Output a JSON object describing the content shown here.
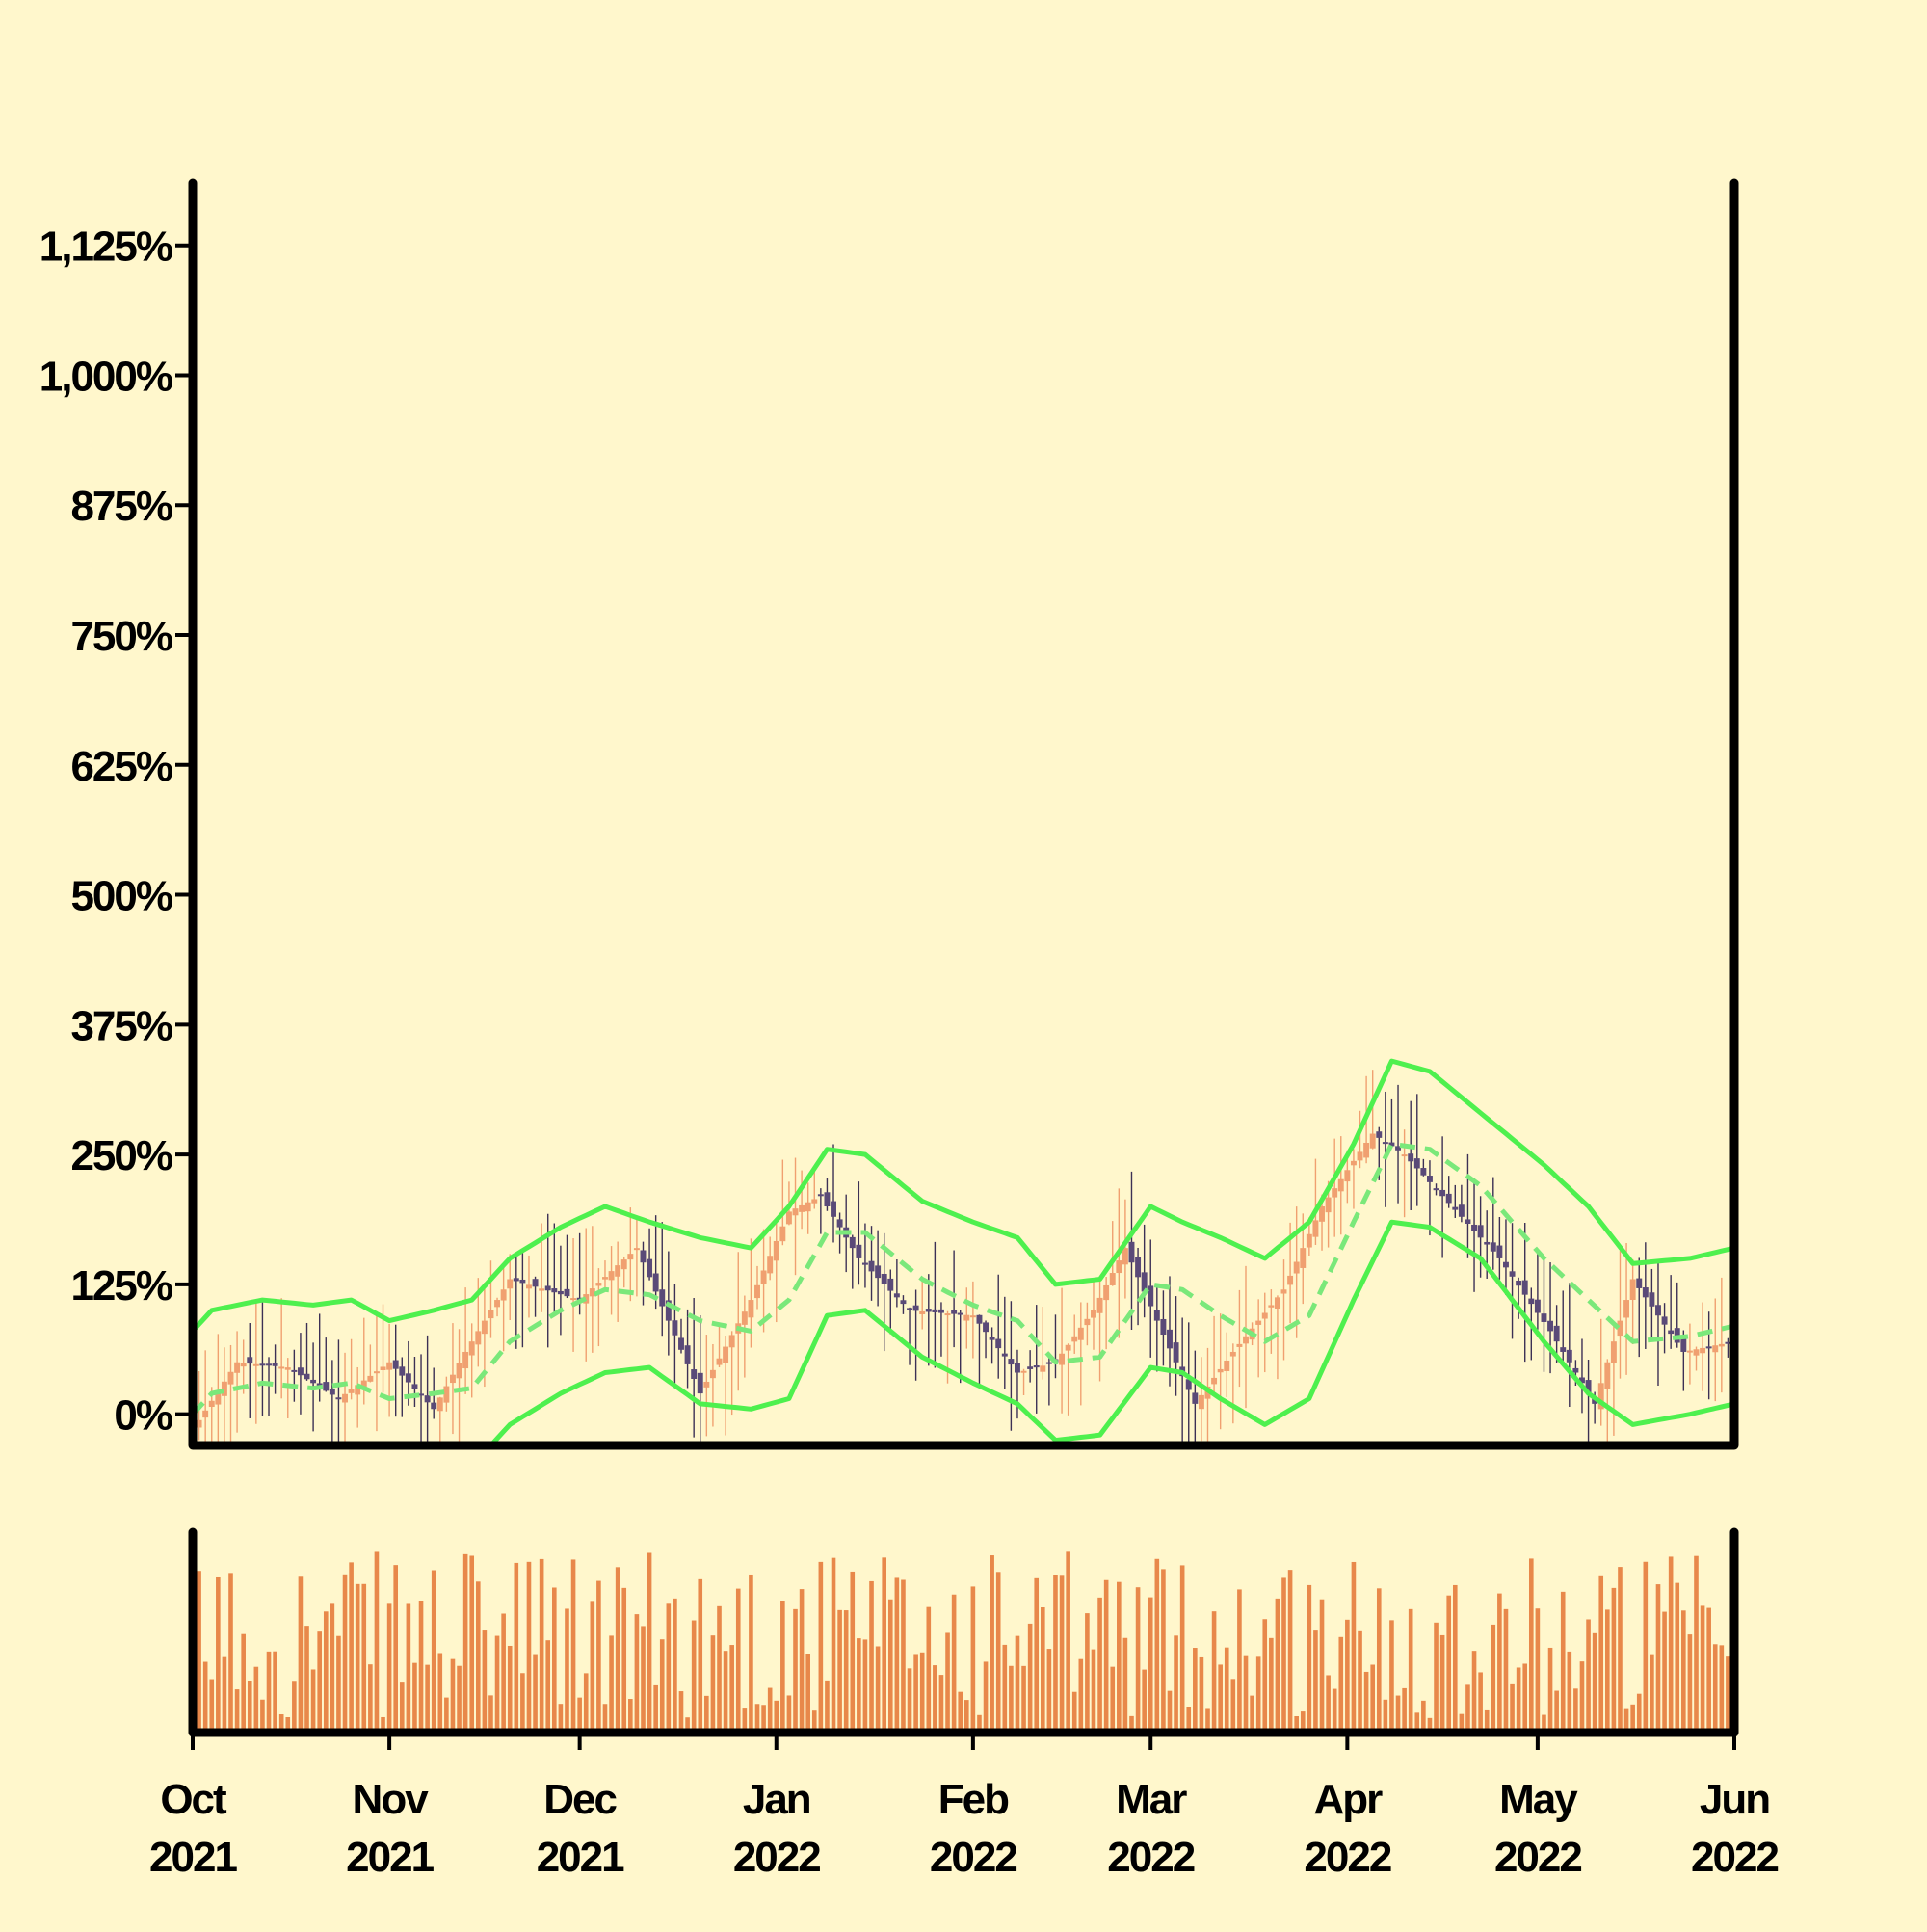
{
  "colors": {
    "background": "#fff7cc",
    "frame": "#000000",
    "candle_up": "#f0a070",
    "candle_up_wick": "#f0a070",
    "candle_down": "#5a4a78",
    "candle_down_wick": "#3c3055",
    "volume": "#e8884a",
    "band": "#4ef04e",
    "band_mid": "#7ae87a"
  },
  "chart_data": {
    "type": "candlestick",
    "title": "",
    "xlabel": "",
    "ylabel": "",
    "ylim": [
      -30,
      1185
    ],
    "yticks": [
      {
        "value": 0,
        "label": "0%"
      },
      {
        "value": 125,
        "label": "125%"
      },
      {
        "value": 250,
        "label": "250%"
      },
      {
        "value": 375,
        "label": "375%"
      },
      {
        "value": 500,
        "label": "500%"
      },
      {
        "value": 625,
        "label": "625%"
      },
      {
        "value": 750,
        "label": "750%"
      },
      {
        "value": 875,
        "label": "875%"
      },
      {
        "value": 1000,
        "label": "1,000%"
      },
      {
        "value": 1125,
        "label": "1,125%"
      }
    ],
    "xrange": [
      "2021-10-01",
      "2022-06-01"
    ],
    "xticks": [
      {
        "date": "2021-10-01",
        "month": "Oct",
        "year": "2021"
      },
      {
        "date": "2021-11-01",
        "month": "Nov",
        "year": "2021"
      },
      {
        "date": "2021-12-01",
        "month": "Dec",
        "year": "2021"
      },
      {
        "date": "2022-01-01",
        "month": "Jan",
        "year": "2022"
      },
      {
        "date": "2022-02-01",
        "month": "Feb",
        "year": "2022"
      },
      {
        "date": "2022-03-01",
        "month": "Mar",
        "year": "2022"
      },
      {
        "date": "2022-04-01",
        "month": "Apr",
        "year": "2022"
      },
      {
        "date": "2022-05-01",
        "month": "May",
        "year": "2022"
      },
      {
        "date": "2022-06-01",
        "month": "Jun",
        "year": "2022"
      }
    ],
    "grid": false,
    "legend": "none",
    "close_path": [
      [
        "2021-10-01",
        -15
      ],
      [
        "2021-10-08",
        50
      ],
      [
        "2021-10-16",
        45
      ],
      [
        "2021-10-24",
        15
      ],
      [
        "2021-11-01",
        50
      ],
      [
        "2021-11-08",
        5
      ],
      [
        "2021-11-13",
        60
      ],
      [
        "2021-11-20",
        130
      ],
      [
        "2021-12-01",
        110
      ],
      [
        "2021-12-10",
        160
      ],
      [
        "2021-12-20",
        20
      ],
      [
        "2021-12-28",
        110
      ],
      [
        "2022-01-03",
        195
      ],
      [
        "2022-01-08",
        210
      ],
      [
        "2022-01-14",
        150
      ],
      [
        "2022-01-22",
        100
      ],
      [
        "2022-02-01",
        95
      ],
      [
        "2022-02-08",
        40
      ],
      [
        "2022-02-14",
        50
      ],
      [
        "2022-02-20",
        100
      ],
      [
        "2022-02-25",
        160
      ],
      [
        "2022-03-02",
        90
      ],
      [
        "2022-03-08",
        10
      ],
      [
        "2022-03-14",
        60
      ],
      [
        "2022-03-22",
        120
      ],
      [
        "2022-03-28",
        200
      ],
      [
        "2022-04-05",
        270
      ],
      [
        "2022-04-10",
        250
      ],
      [
        "2022-04-16",
        210
      ],
      [
        "2022-04-25",
        150
      ],
      [
        "2022-05-03",
        80
      ],
      [
        "2022-05-10",
        10
      ],
      [
        "2022-05-16",
        130
      ],
      [
        "2022-05-24",
        60
      ],
      [
        "2022-06-01",
        70
      ]
    ],
    "bollinger": {
      "upper": [
        [
          "2021-10-01",
          80
        ],
        [
          "2021-10-04",
          100
        ],
        [
          "2021-10-12",
          110
        ],
        [
          "2021-10-20",
          105
        ],
        [
          "2021-10-26",
          110
        ],
        [
          "2021-11-01",
          90
        ],
        [
          "2021-11-08",
          100
        ],
        [
          "2021-11-14",
          110
        ],
        [
          "2021-11-20",
          150
        ],
        [
          "2021-11-28",
          180
        ],
        [
          "2021-12-05",
          200
        ],
        [
          "2021-12-12",
          185
        ],
        [
          "2021-12-20",
          170
        ],
        [
          "2021-12-28",
          160
        ],
        [
          "2022-01-03",
          200
        ],
        [
          "2022-01-09",
          255
        ],
        [
          "2022-01-15",
          250
        ],
        [
          "2022-01-24",
          205
        ],
        [
          "2022-02-01",
          185
        ],
        [
          "2022-02-08",
          170
        ],
        [
          "2022-02-14",
          125
        ],
        [
          "2022-02-21",
          130
        ],
        [
          "2022-03-01",
          200
        ],
        [
          "2022-03-06",
          185
        ],
        [
          "2022-03-12",
          170
        ],
        [
          "2022-03-19",
          150
        ],
        [
          "2022-03-26",
          185
        ],
        [
          "2022-04-02",
          260
        ],
        [
          "2022-04-08",
          340
        ],
        [
          "2022-04-14",
          330
        ],
        [
          "2022-04-22",
          290
        ],
        [
          "2022-05-02",
          240
        ],
        [
          "2022-05-09",
          200
        ],
        [
          "2022-05-16",
          145
        ],
        [
          "2022-05-25",
          150
        ],
        [
          "2022-06-01",
          160
        ]
      ],
      "middle": [
        [
          "2021-10-01",
          0
        ],
        [
          "2021-10-04",
          20
        ],
        [
          "2021-10-12",
          30
        ],
        [
          "2021-10-20",
          25
        ],
        [
          "2021-10-26",
          30
        ],
        [
          "2021-11-01",
          15
        ],
        [
          "2021-11-08",
          20
        ],
        [
          "2021-11-14",
          25
        ],
        [
          "2021-11-20",
          70
        ],
        [
          "2021-11-28",
          100
        ],
        [
          "2021-12-05",
          120
        ],
        [
          "2021-12-12",
          115
        ],
        [
          "2021-12-20",
          90
        ],
        [
          "2021-12-28",
          80
        ],
        [
          "2022-01-03",
          110
        ],
        [
          "2022-01-09",
          175
        ],
        [
          "2022-01-15",
          175
        ],
        [
          "2022-01-24",
          130
        ],
        [
          "2022-02-01",
          105
        ],
        [
          "2022-02-08",
          90
        ],
        [
          "2022-02-14",
          50
        ],
        [
          "2022-02-21",
          55
        ],
        [
          "2022-03-01",
          125
        ],
        [
          "2022-03-06",
          120
        ],
        [
          "2022-03-12",
          95
        ],
        [
          "2022-03-19",
          70
        ],
        [
          "2022-03-26",
          95
        ],
        [
          "2022-04-02",
          185
        ],
        [
          "2022-04-08",
          260
        ],
        [
          "2022-04-14",
          255
        ],
        [
          "2022-04-22",
          220
        ],
        [
          "2022-05-02",
          150
        ],
        [
          "2022-05-09",
          110
        ],
        [
          "2022-05-16",
          70
        ],
        [
          "2022-05-25",
          75
        ],
        [
          "2022-06-01",
          85
        ]
      ],
      "lower": [
        [
          "2021-10-01",
          -70
        ],
        [
          "2021-10-04",
          -60
        ],
        [
          "2021-10-12",
          -50
        ],
        [
          "2021-10-20",
          -55
        ],
        [
          "2021-10-26",
          -50
        ],
        [
          "2021-11-01",
          -60
        ],
        [
          "2021-11-08",
          -60
        ],
        [
          "2021-11-14",
          -50
        ],
        [
          "2021-11-20",
          -10
        ],
        [
          "2021-11-28",
          20
        ],
        [
          "2021-12-05",
          40
        ],
        [
          "2021-12-12",
          45
        ],
        [
          "2021-12-20",
          10
        ],
        [
          "2021-12-28",
          5
        ],
        [
          "2022-01-03",
          15
        ],
        [
          "2022-01-09",
          95
        ],
        [
          "2022-01-15",
          100
        ],
        [
          "2022-01-24",
          55
        ],
        [
          "2022-02-01",
          30
        ],
        [
          "2022-02-08",
          10
        ],
        [
          "2022-02-14",
          -25
        ],
        [
          "2022-02-21",
          -20
        ],
        [
          "2022-03-01",
          45
        ],
        [
          "2022-03-06",
          40
        ],
        [
          "2022-03-12",
          15
        ],
        [
          "2022-03-19",
          -10
        ],
        [
          "2022-03-26",
          15
        ],
        [
          "2022-04-02",
          110
        ],
        [
          "2022-04-08",
          185
        ],
        [
          "2022-04-14",
          180
        ],
        [
          "2022-04-22",
          150
        ],
        [
          "2022-05-02",
          70
        ],
        [
          "2022-05-09",
          20
        ],
        [
          "2022-05-16",
          -10
        ],
        [
          "2022-05-25",
          0
        ],
        [
          "2022-06-01",
          10
        ]
      ]
    },
    "volume": {
      "max": 100,
      "description_free": true
    }
  }
}
